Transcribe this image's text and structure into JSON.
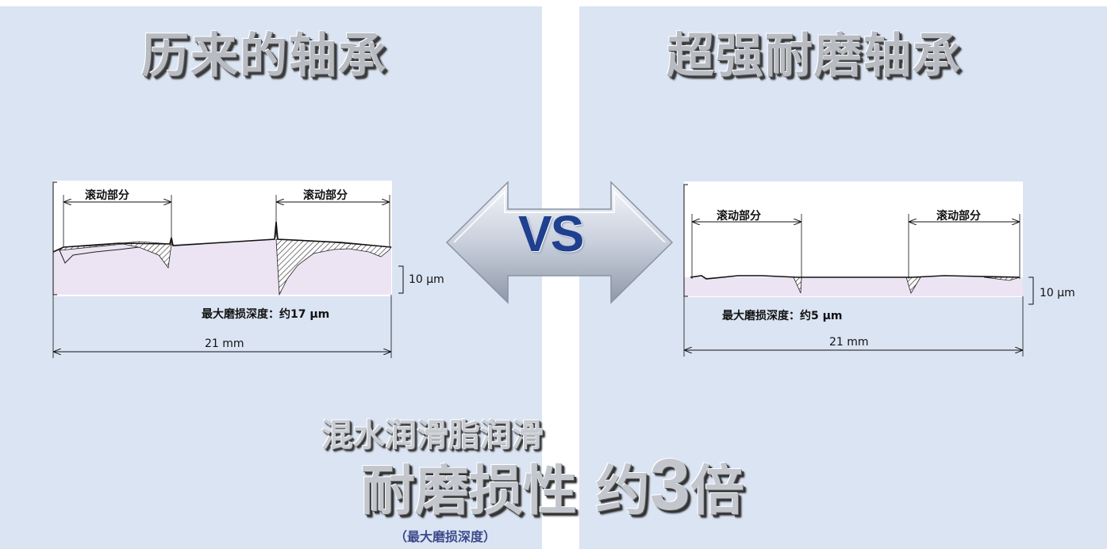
{
  "left": {
    "title": "历来的轴承",
    "rolling_left": "滚动部分",
    "rolling_right": "滚动部分",
    "scale": "10 μm",
    "max_depth": "最大磨损深度：约17 μm",
    "width": "21 mm"
  },
  "right": {
    "title": "超强耐磨轴承",
    "rolling_left": "滚动部分",
    "rolling_right": "滚动部分",
    "scale": "10 μm",
    "max_depth": "最大磨损深度：约5 μm",
    "width": "21 mm"
  },
  "vs": "VS",
  "bottom": {
    "subtitle": "混水润滑脂润滑",
    "claim_prefix": "耐磨损性 约",
    "claim_number": "3",
    "claim_suffix": "倍",
    "note": "（最大磨损深度）"
  },
  "colors": {
    "panel": "#dbe4f3",
    "profile_fill": "#ece4f2",
    "vs_text": "#1f3f8f"
  }
}
